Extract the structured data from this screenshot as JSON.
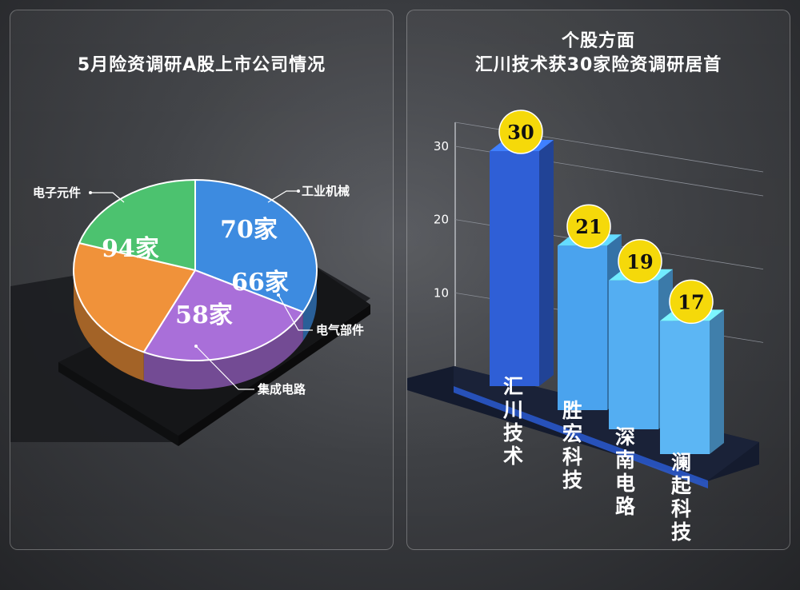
{
  "chart_data": [
    {
      "type": "pie",
      "title": "5月险资调研A股上市公司情况",
      "categories": [
        "电子元件",
        "工业机械",
        "电气部件",
        "集成电路"
      ],
      "values": [
        94,
        70,
        66,
        58
      ],
      "value_labels": [
        "94家",
        "70家",
        "66家",
        "58家"
      ],
      "colors": [
        "#3d8be0",
        "#a96fd9",
        "#f0923a",
        "#4cc26f"
      ]
    },
    {
      "type": "bar",
      "title_lines": [
        "个股方面",
        "汇川技术获30家险资调研居首"
      ],
      "categories": [
        "汇川技术",
        "胜宏科技",
        "深南电路",
        "澜起科技"
      ],
      "values": [
        30,
        21,
        19,
        17
      ],
      "yticks": [
        "10",
        "20",
        "30"
      ],
      "ylim": [
        0,
        30
      ],
      "colors": [
        "#2f5fd6",
        "#4aa3ee",
        "#54aef2",
        "#5cb6f4"
      ],
      "badge_color": "#f5d90a"
    }
  ]
}
